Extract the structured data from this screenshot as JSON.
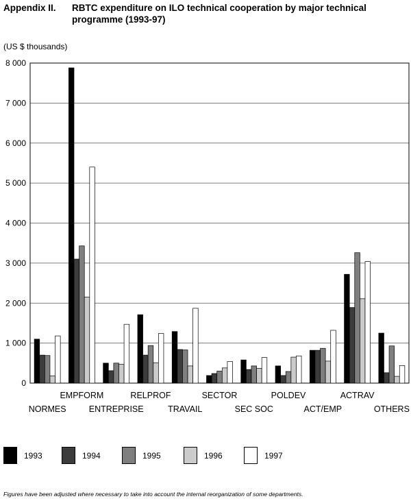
{
  "header": {
    "appendix": "Appendix II.",
    "title": "RBTC expenditure on ILO technical cooperation by major technical programme (1993-97)"
  },
  "chart_data": {
    "type": "bar",
    "unit_label": "(US $ thousands)",
    "categories": [
      "NORMES",
      "EMPFORM",
      "ENTREPRISE",
      "RELPROF",
      "TRAVAIL",
      "SECTOR",
      "SEC SOC",
      "POLDEV",
      "ACT/EMP",
      "ACTRAV",
      "OTHERS"
    ],
    "series": [
      {
        "name": "1993",
        "color": "#000000",
        "values": [
          1100,
          7880,
          500,
          1710,
          1290,
          190,
          580,
          430,
          820,
          2720,
          1250
        ]
      },
      {
        "name": "1994",
        "color": "#3c3c3c",
        "values": [
          700,
          3100,
          310,
          700,
          840,
          240,
          340,
          190,
          820,
          1890,
          260
        ]
      },
      {
        "name": "1995",
        "color": "#7f7f7f",
        "values": [
          690,
          3430,
          500,
          940,
          830,
          300,
          430,
          290,
          870,
          3260,
          930
        ]
      },
      {
        "name": "1996",
        "color": "#cbcbcb",
        "values": [
          180,
          2150,
          470,
          510,
          430,
          380,
          370,
          650,
          550,
          2110,
          170
        ]
      },
      {
        "name": "1997",
        "color": "#ffffff",
        "values": [
          1180,
          5400,
          1470,
          1240,
          1870,
          540,
          640,
          680,
          1320,
          3040,
          440
        ]
      }
    ],
    "yticks": [
      "0",
      "1 000",
      "2 000",
      "3 000",
      "4 000",
      "5 000",
      "6 000",
      "7 000",
      "8 000"
    ],
    "ylim": [
      0,
      8000
    ],
    "grid": true,
    "legend_position": "bottom"
  },
  "footnote": "Figures have been adjusted where necessary to take into account the internal reorganization of some departments."
}
